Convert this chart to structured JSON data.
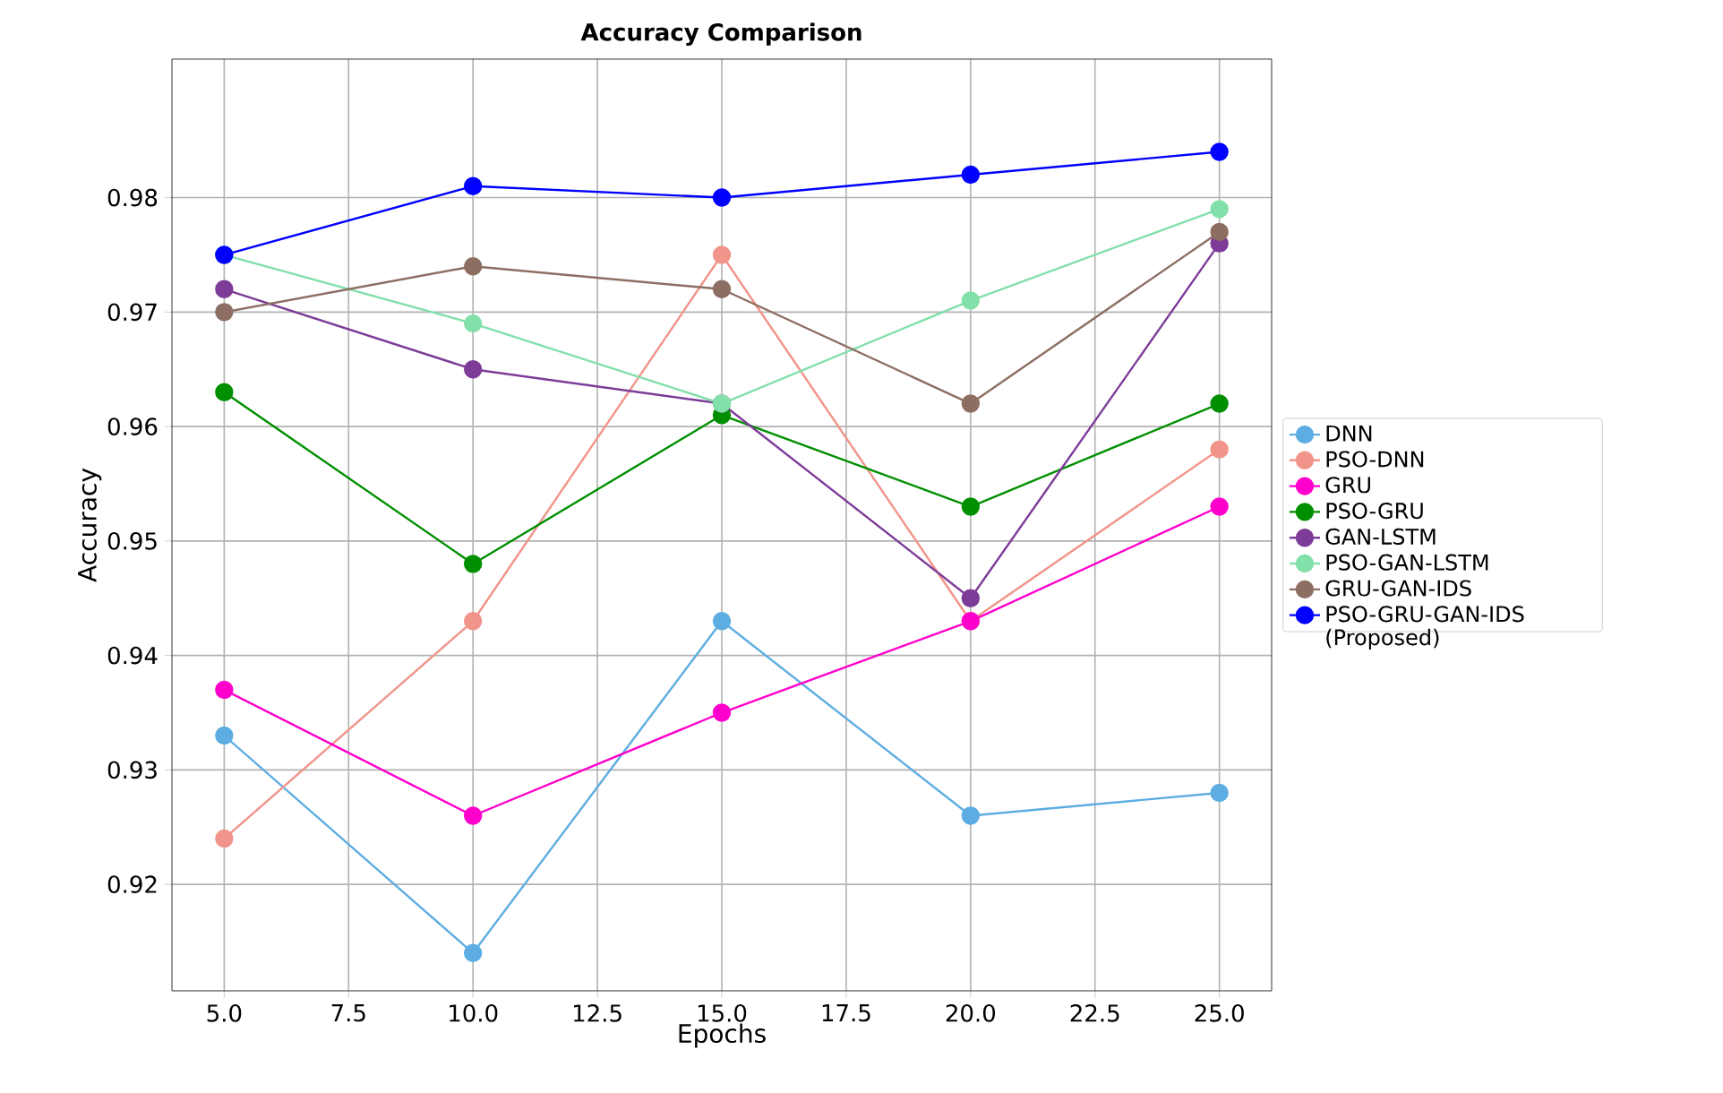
{
  "chart_data": {
    "type": "line",
    "title": "Accuracy Comparison",
    "xlabel": "Epochs",
    "ylabel": "Accuracy",
    "x": [
      5,
      10,
      15,
      20,
      25
    ],
    "series": [
      {
        "name": "DNN",
        "color": "#5dade2",
        "values": [
          0.933,
          0.914,
          0.943,
          0.926,
          0.928
        ]
      },
      {
        "name": "PSO-DNN",
        "color": "#f1948a",
        "values": [
          0.924,
          0.943,
          0.975,
          0.943,
          0.958
        ]
      },
      {
        "name": "GRU",
        "color": "#ff00cc",
        "values": [
          0.937,
          0.926,
          0.935,
          0.943,
          0.953
        ]
      },
      {
        "name": "PSO-GRU",
        "color": "#008f00",
        "values": [
          0.963,
          0.948,
          0.961,
          0.953,
          0.962
        ]
      },
      {
        "name": "GAN-LSTM",
        "color": "#7d3c98",
        "values": [
          0.972,
          0.965,
          0.962,
          0.945,
          0.976
        ]
      },
      {
        "name": "PSO-GAN-LSTM",
        "color": "#82e0aa",
        "values": [
          0.975,
          0.969,
          0.962,
          0.971,
          0.979
        ]
      },
      {
        "name": "GRU-GAN-IDS",
        "color": "#8d6e63",
        "values": [
          0.97,
          0.974,
          0.972,
          0.962,
          0.977
        ]
      },
      {
        "name": "PSO-GRU-GAN-IDS (Proposed)",
        "color": "#0000ff",
        "values": [
          0.975,
          0.981,
          0.98,
          0.982,
          0.984
        ]
      }
    ],
    "xlim": [
      3.95,
      26.05
    ],
    "ylim": [
      0.9107,
      0.9921
    ],
    "xticks": [
      {
        "value": 5,
        "label": "5.0"
      },
      {
        "value": 7.5,
        "label": "7.5"
      },
      {
        "value": 10,
        "label": "10.0"
      },
      {
        "value": 12.5,
        "label": "12.5"
      },
      {
        "value": 15,
        "label": "15.0"
      },
      {
        "value": 17.5,
        "label": "17.5"
      },
      {
        "value": 20,
        "label": "20.0"
      },
      {
        "value": 22.5,
        "label": "22.5"
      },
      {
        "value": 25,
        "label": "25.0"
      }
    ],
    "yticks": [
      0.92,
      0.93,
      0.94,
      0.95,
      0.96,
      0.97,
      0.98
    ],
    "grid": true,
    "legend": "right",
    "marker": "circle",
    "line_style": "solid"
  }
}
